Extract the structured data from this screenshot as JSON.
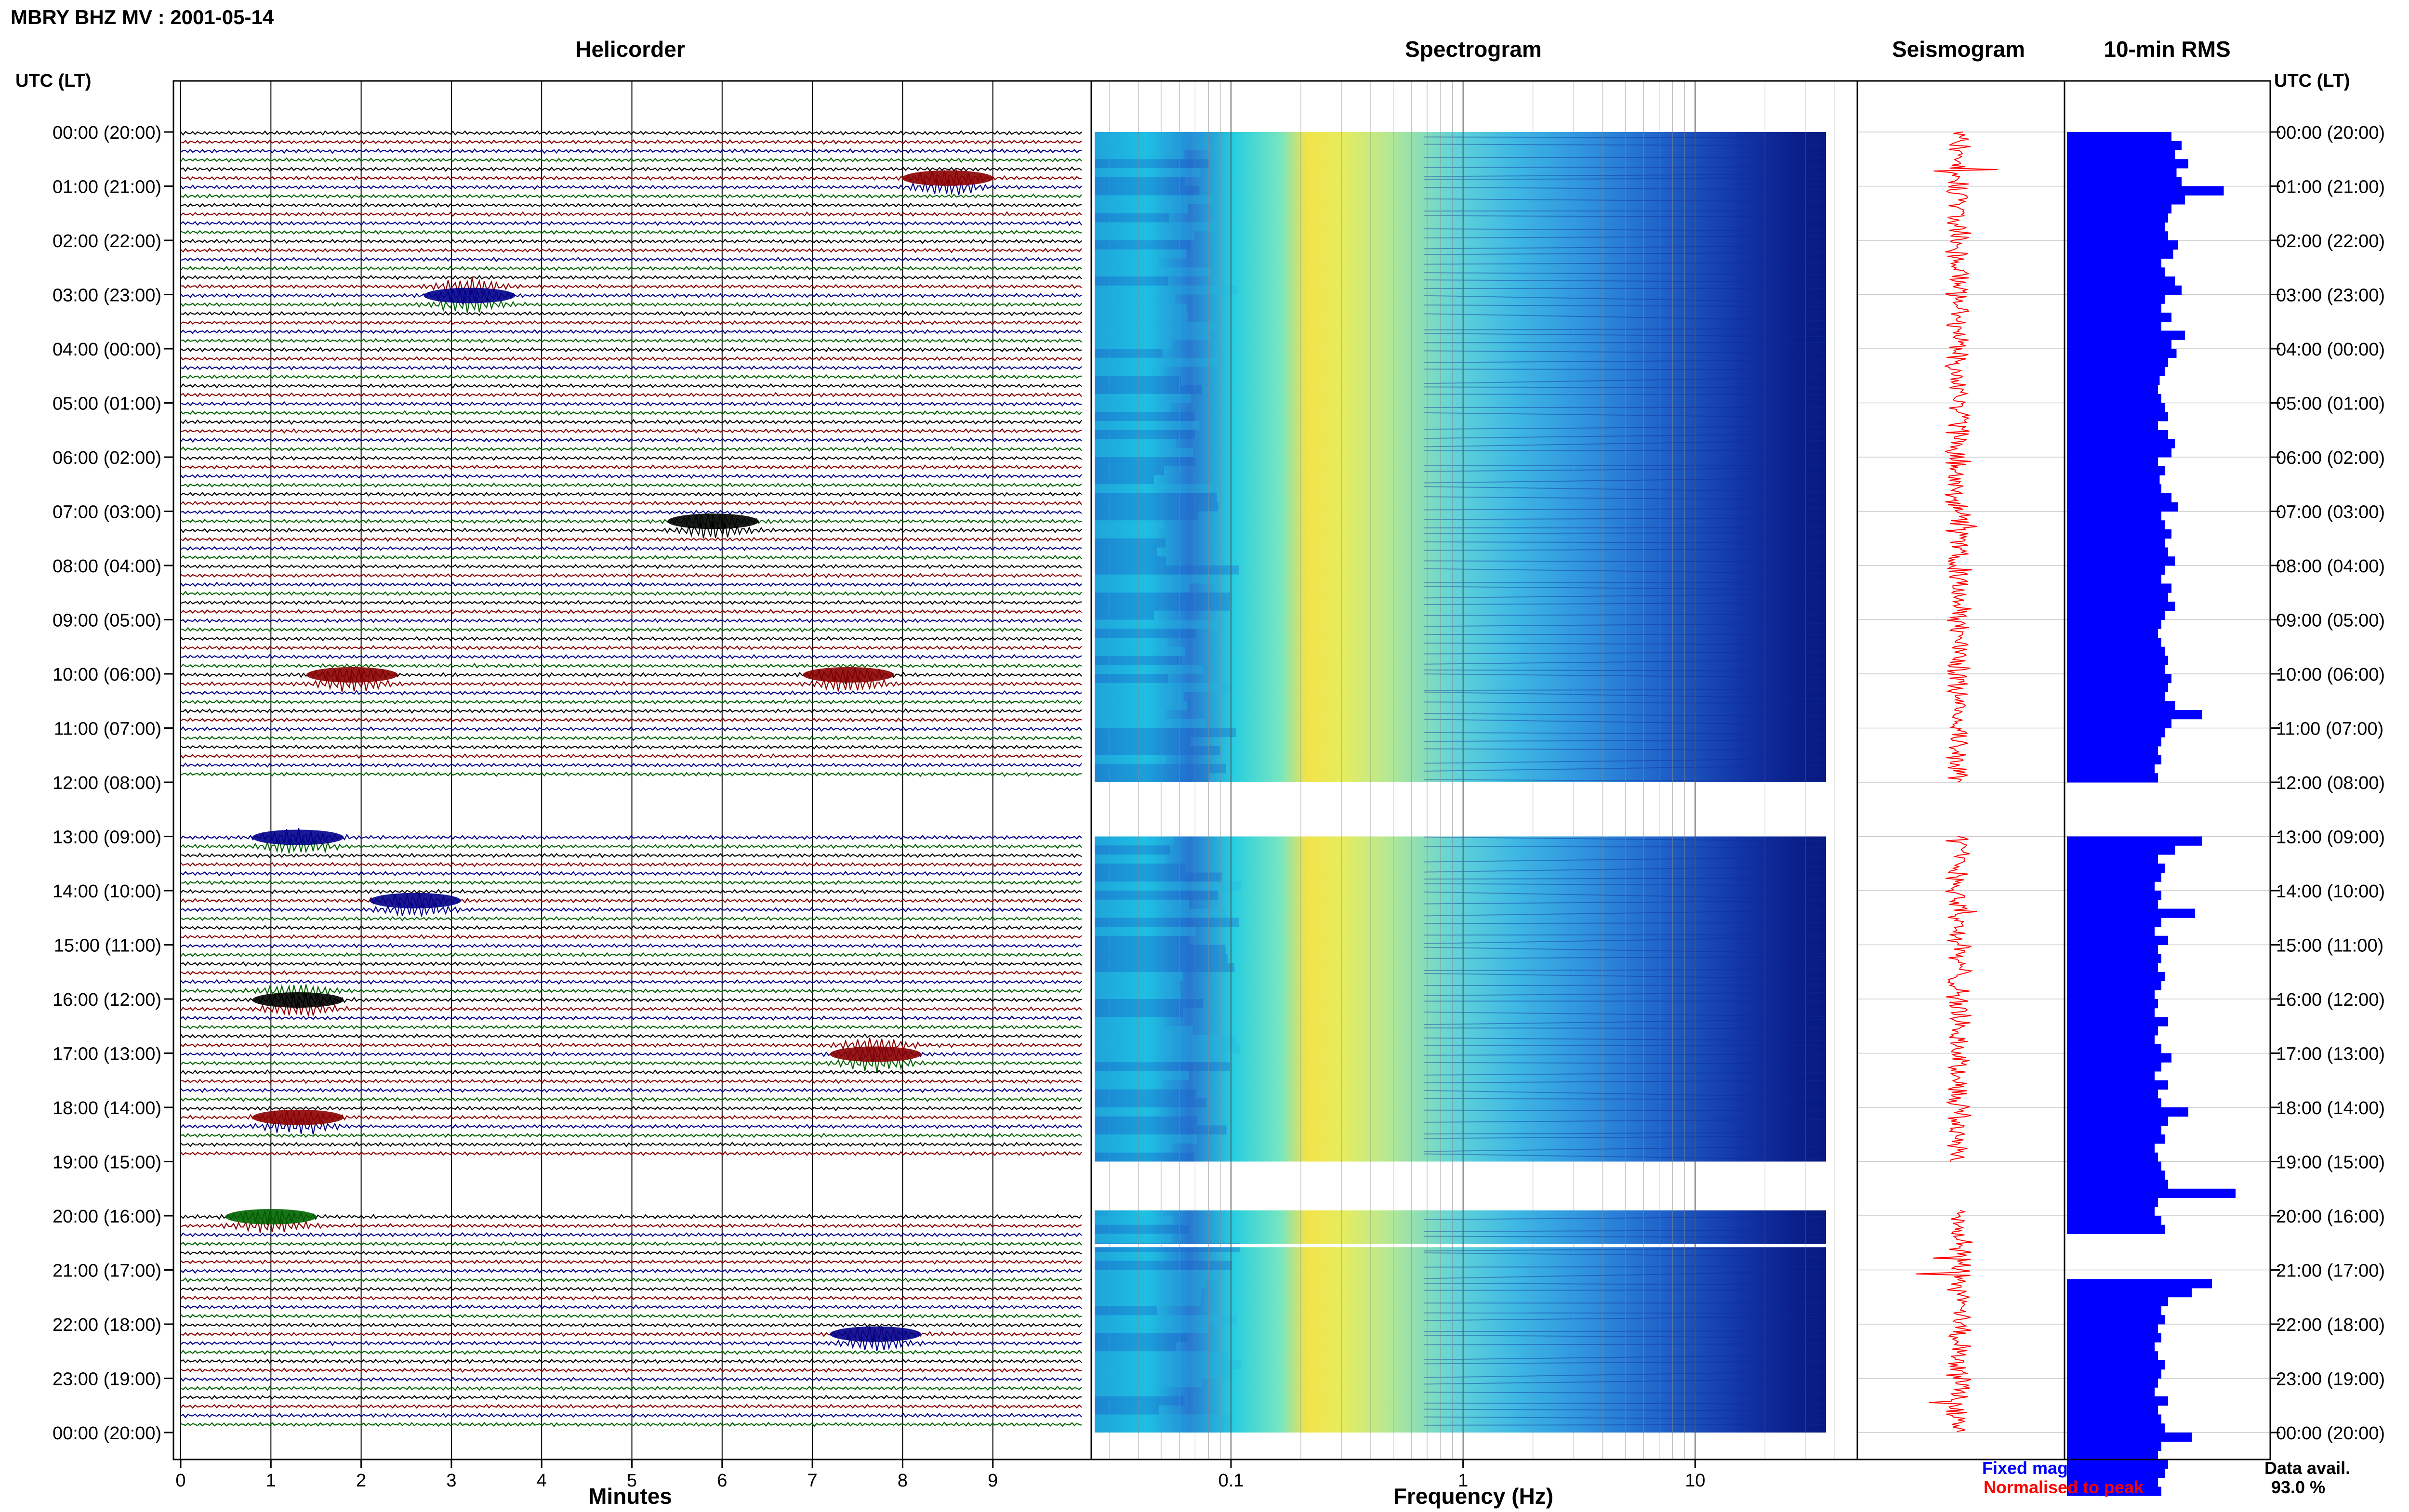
{
  "title": "MBRY BHZ MV : 2001-05-14",
  "time_axis_label": "UTC (LT)",
  "panels": {
    "helicorder": "Helicorder",
    "spectrogram": "Spectrogram",
    "seismogram": "Seismogram",
    "rms": "10-min RMS"
  },
  "time_labels": [
    "00:00 (20:00)",
    "01:00 (21:00)",
    "02:00 (22:00)",
    "03:00 (23:00)",
    "04:00 (00:00)",
    "05:00 (01:00)",
    "06:00 (02:00)",
    "07:00 (03:00)",
    "08:00 (04:00)",
    "09:00 (05:00)",
    "10:00 (06:00)",
    "11:00 (07:00)",
    "12:00 (08:00)",
    "13:00 (09:00)",
    "14:00 (10:00)",
    "15:00 (11:00)",
    "16:00 (12:00)",
    "17:00 (13:00)",
    "18:00 (14:00)",
    "19:00 (15:00)",
    "20:00 (16:00)",
    "21:00 (17:00)",
    "22:00 (18:00)",
    "23:00 (19:00)",
    "00:00 (20:00)"
  ],
  "legend": {
    "fixed": "Fixed magnification",
    "normalised": "Normalised to peak",
    "fixed_color": "#0000ff",
    "normalised_color": "#ff0000"
  },
  "data_avail": {
    "label": "Data avail.",
    "value": "93.0 %"
  },
  "chart_data": [
    {
      "type": "line",
      "name": "helicorder",
      "xlabel": "Minutes",
      "xlim": [
        0,
        10
      ],
      "x_ticks": [
        "0",
        "1",
        "2",
        "3",
        "4",
        "5",
        "6",
        "7",
        "8",
        "9"
      ],
      "trace_colors": [
        "#000000",
        "#8b0000",
        "#00008b",
        "#006400"
      ],
      "gaps_hours": [
        [
          12.0,
          13.0
        ],
        [
          19.0,
          19.9
        ]
      ],
      "events": [
        {
          "h": 0.9,
          "m": 8.5,
          "color": "#8b0000"
        },
        {
          "h": 3.0,
          "m": 3.2,
          "color": "#00008b"
        },
        {
          "h": 7.3,
          "m": 5.9,
          "color": "#000000"
        },
        {
          "h": 10.1,
          "m": 1.9,
          "color": "#8b0000"
        },
        {
          "h": 10.1,
          "m": 7.4,
          "color": "#8b0000"
        },
        {
          "h": 13.0,
          "m": 1.3,
          "color": "#00008b"
        },
        {
          "h": 14.3,
          "m": 2.6,
          "color": "#00008b"
        },
        {
          "h": 16.0,
          "m": 1.3,
          "color": "#000000"
        },
        {
          "h": 17.0,
          "m": 7.7,
          "color": "#8b0000"
        },
        {
          "h": 18.2,
          "m": 1.3,
          "color": "#8b0000"
        },
        {
          "h": 20.0,
          "m": 1.0,
          "color": "#006400"
        },
        {
          "h": 22.3,
          "m": 7.7,
          "color": "#00008b"
        }
      ]
    },
    {
      "type": "heatmap",
      "name": "spectrogram",
      "xlabel": "Frequency (Hz)",
      "xscale": "log",
      "xlim": [
        0.025,
        50
      ],
      "x_ticks": [
        "0.1",
        "1",
        "10"
      ],
      "data_xlim": [
        0.025,
        40
      ],
      "colormap": "jet",
      "white_gap_hours": [
        20.52,
        20.58
      ]
    },
    {
      "type": "line",
      "name": "seismogram",
      "color": "#ff0000"
    },
    {
      "type": "bar",
      "name": "10-min RMS",
      "orientation": "horizontal",
      "color": "#0000ff",
      "note_values": "relative bar length per 10-min window, 0-1",
      "values": [
        0.62,
        0.68,
        0.64,
        0.72,
        0.65,
        0.68,
        0.93,
        0.7,
        0.62,
        0.6,
        0.58,
        0.6,
        0.66,
        0.63,
        0.56,
        0.58,
        0.64,
        0.68,
        0.58,
        0.56,
        0.62,
        0.56,
        0.7,
        0.62,
        0.65,
        0.6,
        0.58,
        0.55,
        0.54,
        0.56,
        0.58,
        0.6,
        0.54,
        0.6,
        0.64,
        0.62,
        0.54,
        0.58,
        0.55,
        0.56,
        0.62,
        0.66,
        0.56,
        0.58,
        0.62,
        0.58,
        0.6,
        0.64,
        0.58,
        0.56,
        0.62,
        0.6,
        0.64,
        0.58,
        0.56,
        0.54,
        0.56,
        0.58,
        0.6,
        0.58,
        0.62,
        0.6,
        0.58,
        0.64,
        0.8,
        0.62,
        0.58,
        0.56,
        0.54,
        0.56,
        0.52,
        0.54,
        0.0,
        0.0,
        0.0,
        0.0,
        0.0,
        0.0,
        0.8,
        0.64,
        0.54,
        0.58,
        0.56,
        0.52,
        0.56,
        0.54,
        0.76,
        0.56,
        0.52,
        0.6,
        0.54,
        0.56,
        0.54,
        0.58,
        0.56,
        0.52,
        0.54,
        0.52,
        0.6,
        0.54,
        0.52,
        0.56,
        0.62,
        0.56,
        0.52,
        0.6,
        0.54,
        0.56,
        0.72,
        0.6,
        0.56,
        0.58,
        0.52,
        0.54,
        0.56,
        0.58,
        0.6,
        1.0,
        0.54,
        0.52,
        0.56,
        0.58,
        0.0,
        0.0,
        0.0,
        0.0,
        0.0,
        0.86,
        0.74,
        0.6,
        0.56,
        0.58,
        0.54,
        0.56,
        0.52,
        0.54,
        0.58,
        0.56,
        0.54,
        0.52,
        0.6,
        0.54,
        0.56,
        0.58,
        0.74,
        0.56,
        0.54,
        0.6,
        0.58,
        0.54,
        0.56
      ]
    }
  ]
}
